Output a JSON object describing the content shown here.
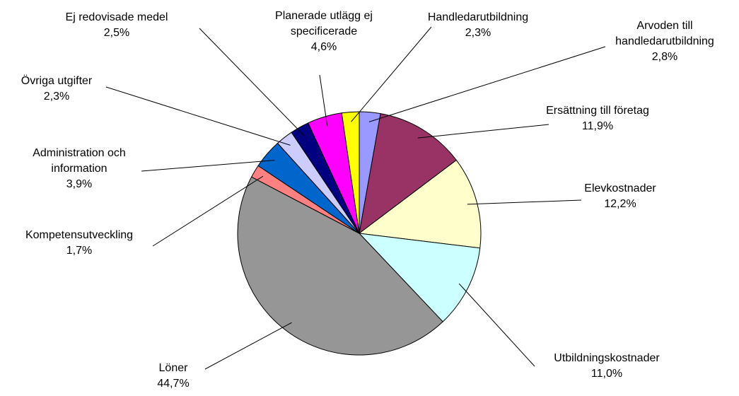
{
  "chart_data": {
    "type": "pie",
    "categories": [
      "Arvoden till handledarutbildning",
      "Ersättning till företag",
      "Elevkostnader",
      "Utbildningskostnader",
      "Löner",
      "Kompetensutveckling",
      "Administration och information",
      "Övriga utgifter",
      "Ej redovisade medel",
      "Planerade utlägg ej specificerade",
      "Handledarutbildning"
    ],
    "values": [
      2.8,
      11.9,
      12.2,
      11.0,
      44.7,
      1.7,
      3.9,
      2.3,
      2.5,
      4.6,
      2.3
    ],
    "value_labels": [
      "2,8%",
      "11,9%",
      "12,2%",
      "11,0%",
      "44,7%",
      "1,7%",
      "3,9%",
      "2,3%",
      "2,5%",
      "4,6%",
      "2,3%"
    ],
    "colors": [
      "#9999ff",
      "#993366",
      "#ffffcc",
      "#ccffff",
      "#969696",
      "#ff8080",
      "#0066cc",
      "#ccccff",
      "#000080",
      "#ff00ff",
      "#ffff00"
    ]
  }
}
